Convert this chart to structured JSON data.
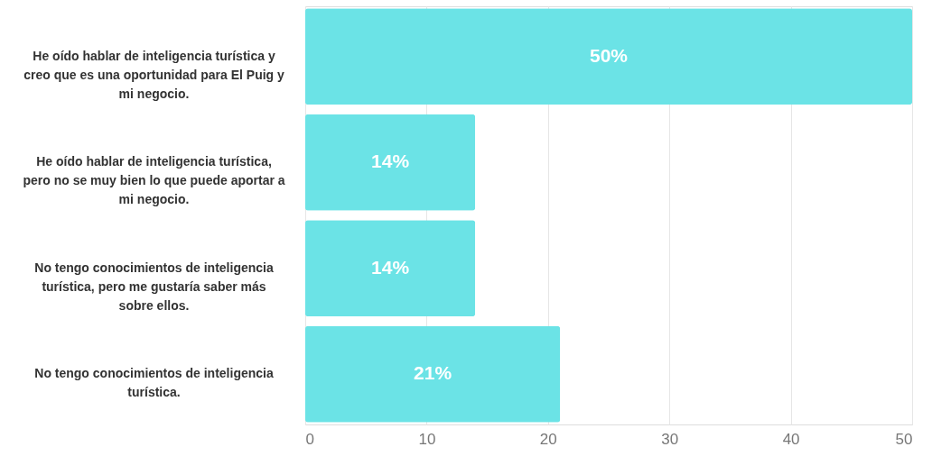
{
  "chart_data": {
    "type": "bar",
    "orientation": "horizontal",
    "categories": [
      "He oído hablar de inteligencia turística y creo que es una oportunidad para El Puig y mi negocio.",
      "He oído hablar de inteligencia turística, pero no se muy bien lo que puede aportar a mi negocio.",
      "No tengo conocimientos de inteligencia turística, pero me gustaría saber más sobre ellos.",
      "No tengo conocimientos de inteligencia turística."
    ],
    "values": [
      50,
      14,
      14,
      21
    ],
    "value_labels": [
      "50%",
      "14%",
      "14%",
      "21%"
    ],
    "color": "#6be3e6",
    "xlim": [
      0,
      50
    ],
    "xticks": [
      0,
      10,
      20,
      30,
      40,
      50
    ],
    "grid": "x"
  }
}
